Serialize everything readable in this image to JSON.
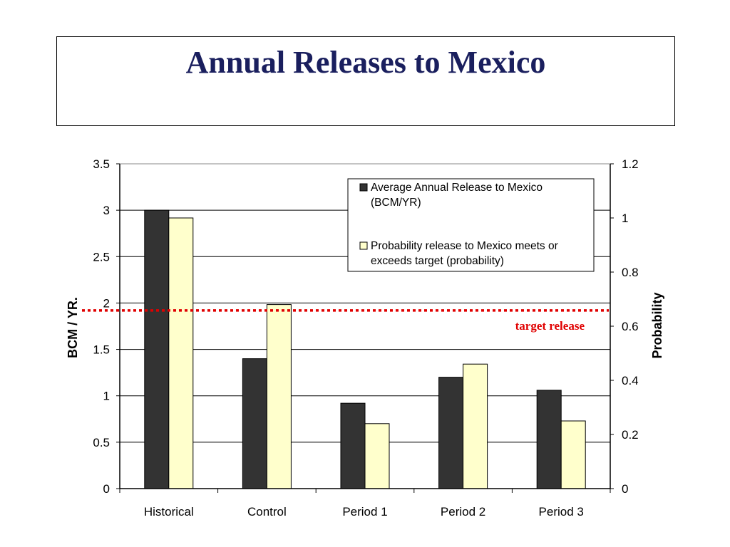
{
  "slide": {
    "title": "Annual Releases to Mexico"
  },
  "chart_data": {
    "type": "bar",
    "categories": [
      "Historical",
      "Control",
      "Period 1",
      "Period 2",
      "Period 3"
    ],
    "series": [
      {
        "name": "Average Annual Release to Mexico (BCM/YR)",
        "legend_lines": [
          "Average Annual Release to Mexico",
          "(BCM/YR)"
        ],
        "axis": "left",
        "color": "#333333",
        "values": [
          3.0,
          1.4,
          0.92,
          1.2,
          1.06
        ]
      },
      {
        "name": "Probability release to Mexico meets or exceeds target (probability)",
        "legend_lines": [
          "Probability release to Mexico meets or",
          "exceeds target (probability)"
        ],
        "axis": "right",
        "color": "#ffffcc",
        "values": [
          1.0,
          0.68,
          0.24,
          0.46,
          0.25
        ]
      }
    ],
    "ylabel": "BCM / YR.",
    "ylim": [
      0,
      3.5
    ],
    "yticks": [
      "0",
      "0.5",
      "1",
      "1.5",
      "2",
      "2.5",
      "3",
      "3.5"
    ],
    "y2label": "Probability",
    "y2lim": [
      0,
      1.2
    ],
    "y2ticks": [
      "0",
      "0.2",
      "0.4",
      "0.6",
      "0.8",
      "1",
      "1.2"
    ],
    "grid": true,
    "legend_position": "top-right",
    "target_line": {
      "label": "target release",
      "value_left_axis": 1.92,
      "color": "#e00000"
    }
  }
}
